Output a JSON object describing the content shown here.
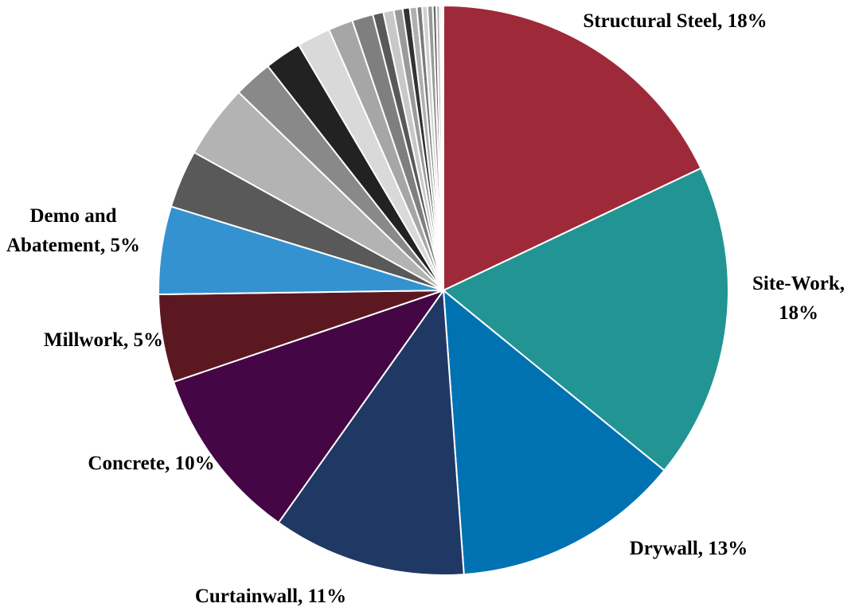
{
  "chart_data": {
    "type": "pie",
    "categories": [
      "Structural Steel,",
      "Site-Work,",
      "Drywall,",
      "Curtainwall,",
      "Concrete,",
      "Millwork,",
      "Demo and Abatement,",
      null,
      null,
      null,
      null,
      null,
      null,
      null,
      null,
      null,
      null,
      null,
      null,
      null,
      null,
      null,
      null,
      null,
      null,
      null
    ],
    "values": [
      18,
      18,
      13,
      11,
      10,
      5,
      5,
      3.3,
      4.2,
      2.2,
      2.1,
      1.9,
      1.4,
      1.2,
      0.6,
      0.6,
      0.5,
      0.4,
      0.4,
      0.3,
      0.3,
      0.3,
      0.2,
      0.2,
      0.1,
      0.1
    ],
    "value_labels": [
      "18%",
      "18%",
      "13%",
      "11%",
      "10%",
      "5%",
      "5%",
      null,
      null,
      null,
      null,
      null,
      null,
      null,
      null,
      null,
      null,
      null,
      null,
      null,
      null,
      null,
      null,
      null,
      null,
      null
    ],
    "colors": [
      "#9e2a39",
      "#229493",
      "#0072b2",
      "#203864",
      "#450645",
      "#5c1820",
      "#3592d1",
      "#595959",
      "#b3b3b3",
      "#898989",
      "#222222",
      "#d9d9d9",
      "#a6a6a6",
      "#7f7f7f",
      "#595959",
      "#c8c8c8",
      "#9a9a9a",
      "#333333",
      "#b0b0b0",
      "#7a7a7a",
      "#d0d0d0",
      "#999999",
      "#666666",
      "#bbbbbb",
      "#888888",
      "#dddddd"
    ]
  }
}
